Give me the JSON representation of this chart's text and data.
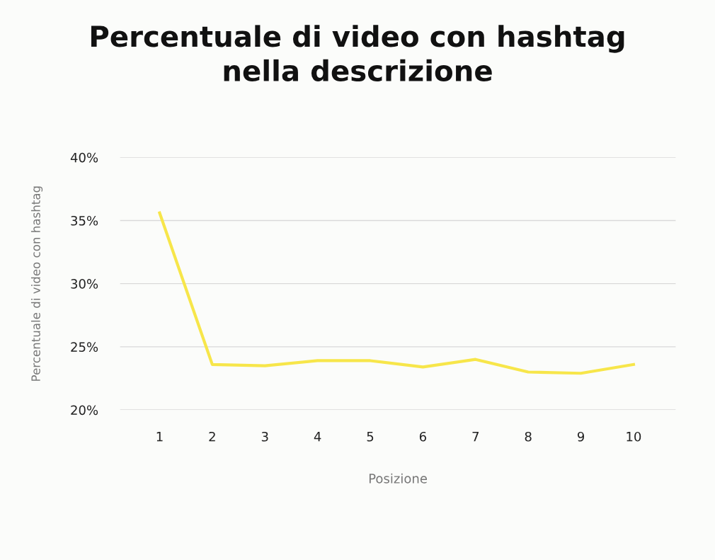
{
  "chart_data": {
    "type": "line",
    "title": "Percentuale di video con hashtag\nnella descrizione",
    "xlabel": "Posizione",
    "ylabel": "Percentuale di video con hashtag",
    "categories": [
      "1",
      "2",
      "3",
      "4",
      "5",
      "6",
      "7",
      "8",
      "9",
      "10"
    ],
    "series": [
      {
        "color": "#f7e64a",
        "values": [
          35.6,
          23.6,
          23.5,
          23.9,
          23.9,
          23.4,
          24.0,
          23.0,
          22.9,
          23.6
        ]
      }
    ],
    "ylim": [
      20,
      40
    ],
    "yticks": [
      {
        "value": 20,
        "label": "20%"
      },
      {
        "value": 25,
        "label": "25%"
      },
      {
        "value": 30,
        "label": "30%"
      },
      {
        "value": 35,
        "label": "35%"
      },
      {
        "value": 40,
        "label": "40%"
      }
    ],
    "grid": "y",
    "marker": "none",
    "line_style": "solid"
  }
}
